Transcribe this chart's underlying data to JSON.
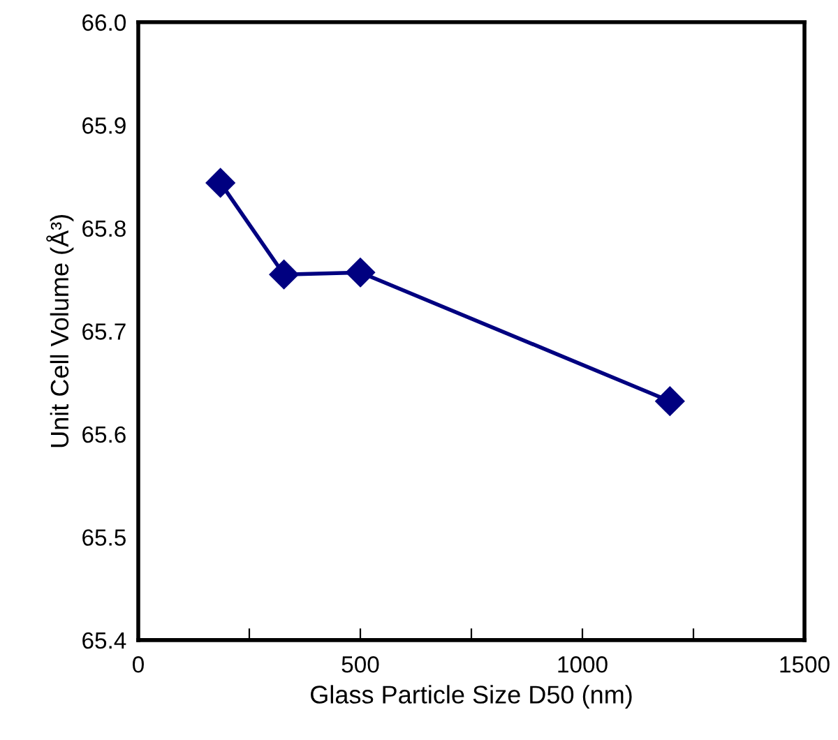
{
  "chart_data": {
    "type": "line",
    "xlabel": "Glass Particle Size D50 (nm)",
    "ylabel": "Unit Cell Volume (Å³)",
    "x": [
      185,
      328,
      500,
      1197
    ],
    "series": [
      {
        "color": "#000080",
        "values": [
          65.844,
          65.755,
          65.757,
          65.632
        ]
      }
    ],
    "xlim": [
      0,
      1500
    ],
    "ylim": [
      65.4,
      66.0
    ],
    "xticks": [
      0,
      {
        "value": 250,
        "label": null
      },
      500,
      {
        "value": 750,
        "label": null
      },
      1000,
      {
        "value": 1250,
        "label": null
      },
      1500
    ],
    "yticks": [
      {
        "value": 65.4,
        "label": "65.4"
      },
      {
        "value": 65.5,
        "label": "65.5"
      },
      {
        "value": 65.6,
        "label": "65.6"
      },
      {
        "value": 65.7,
        "label": "65.7"
      },
      {
        "value": 65.8,
        "label": "65.8"
      },
      {
        "value": 65.9,
        "label": "65.9"
      },
      {
        "value": 66.0,
        "label": "66.0"
      }
    ],
    "marker": "diamond",
    "line_style": "solid",
    "grid": false,
    "legend": false
  }
}
